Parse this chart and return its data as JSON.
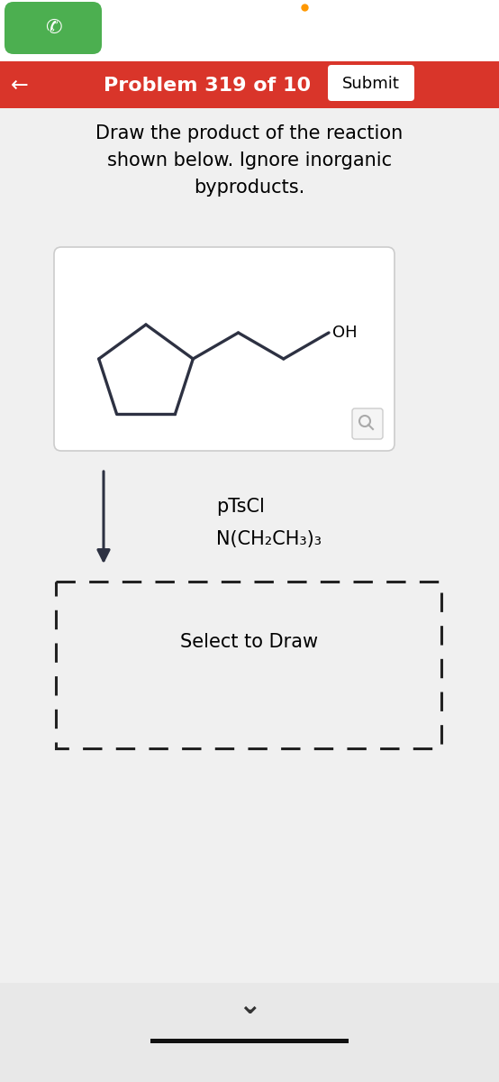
{
  "title_bar_color": "#d9352a",
  "title_text": "Problem 319 of 10",
  "submit_text": "Submit",
  "bg_color": "#f0f0f0",
  "white": "#ffffff",
  "instruction_lines": [
    "Draw the product of the reaction",
    "shown below. Ignore inorganic",
    "byproducts."
  ],
  "reagent_line1": "pTsCl",
  "reagent_line2": "N(CH₂CH₃)₃",
  "select_text": "Select to Draw",
  "arrow_color": "#2d3142",
  "molecule_color": "#2d3142",
  "oh_text": "OH",
  "phone_green": "#4CAF50",
  "orange_dot_color": "#FF9800",
  "mag_color": "#aaaaaa",
  "bottom_bar_color": "#111111",
  "chevron_color": "#333333",
  "dashed_color": "#222222"
}
